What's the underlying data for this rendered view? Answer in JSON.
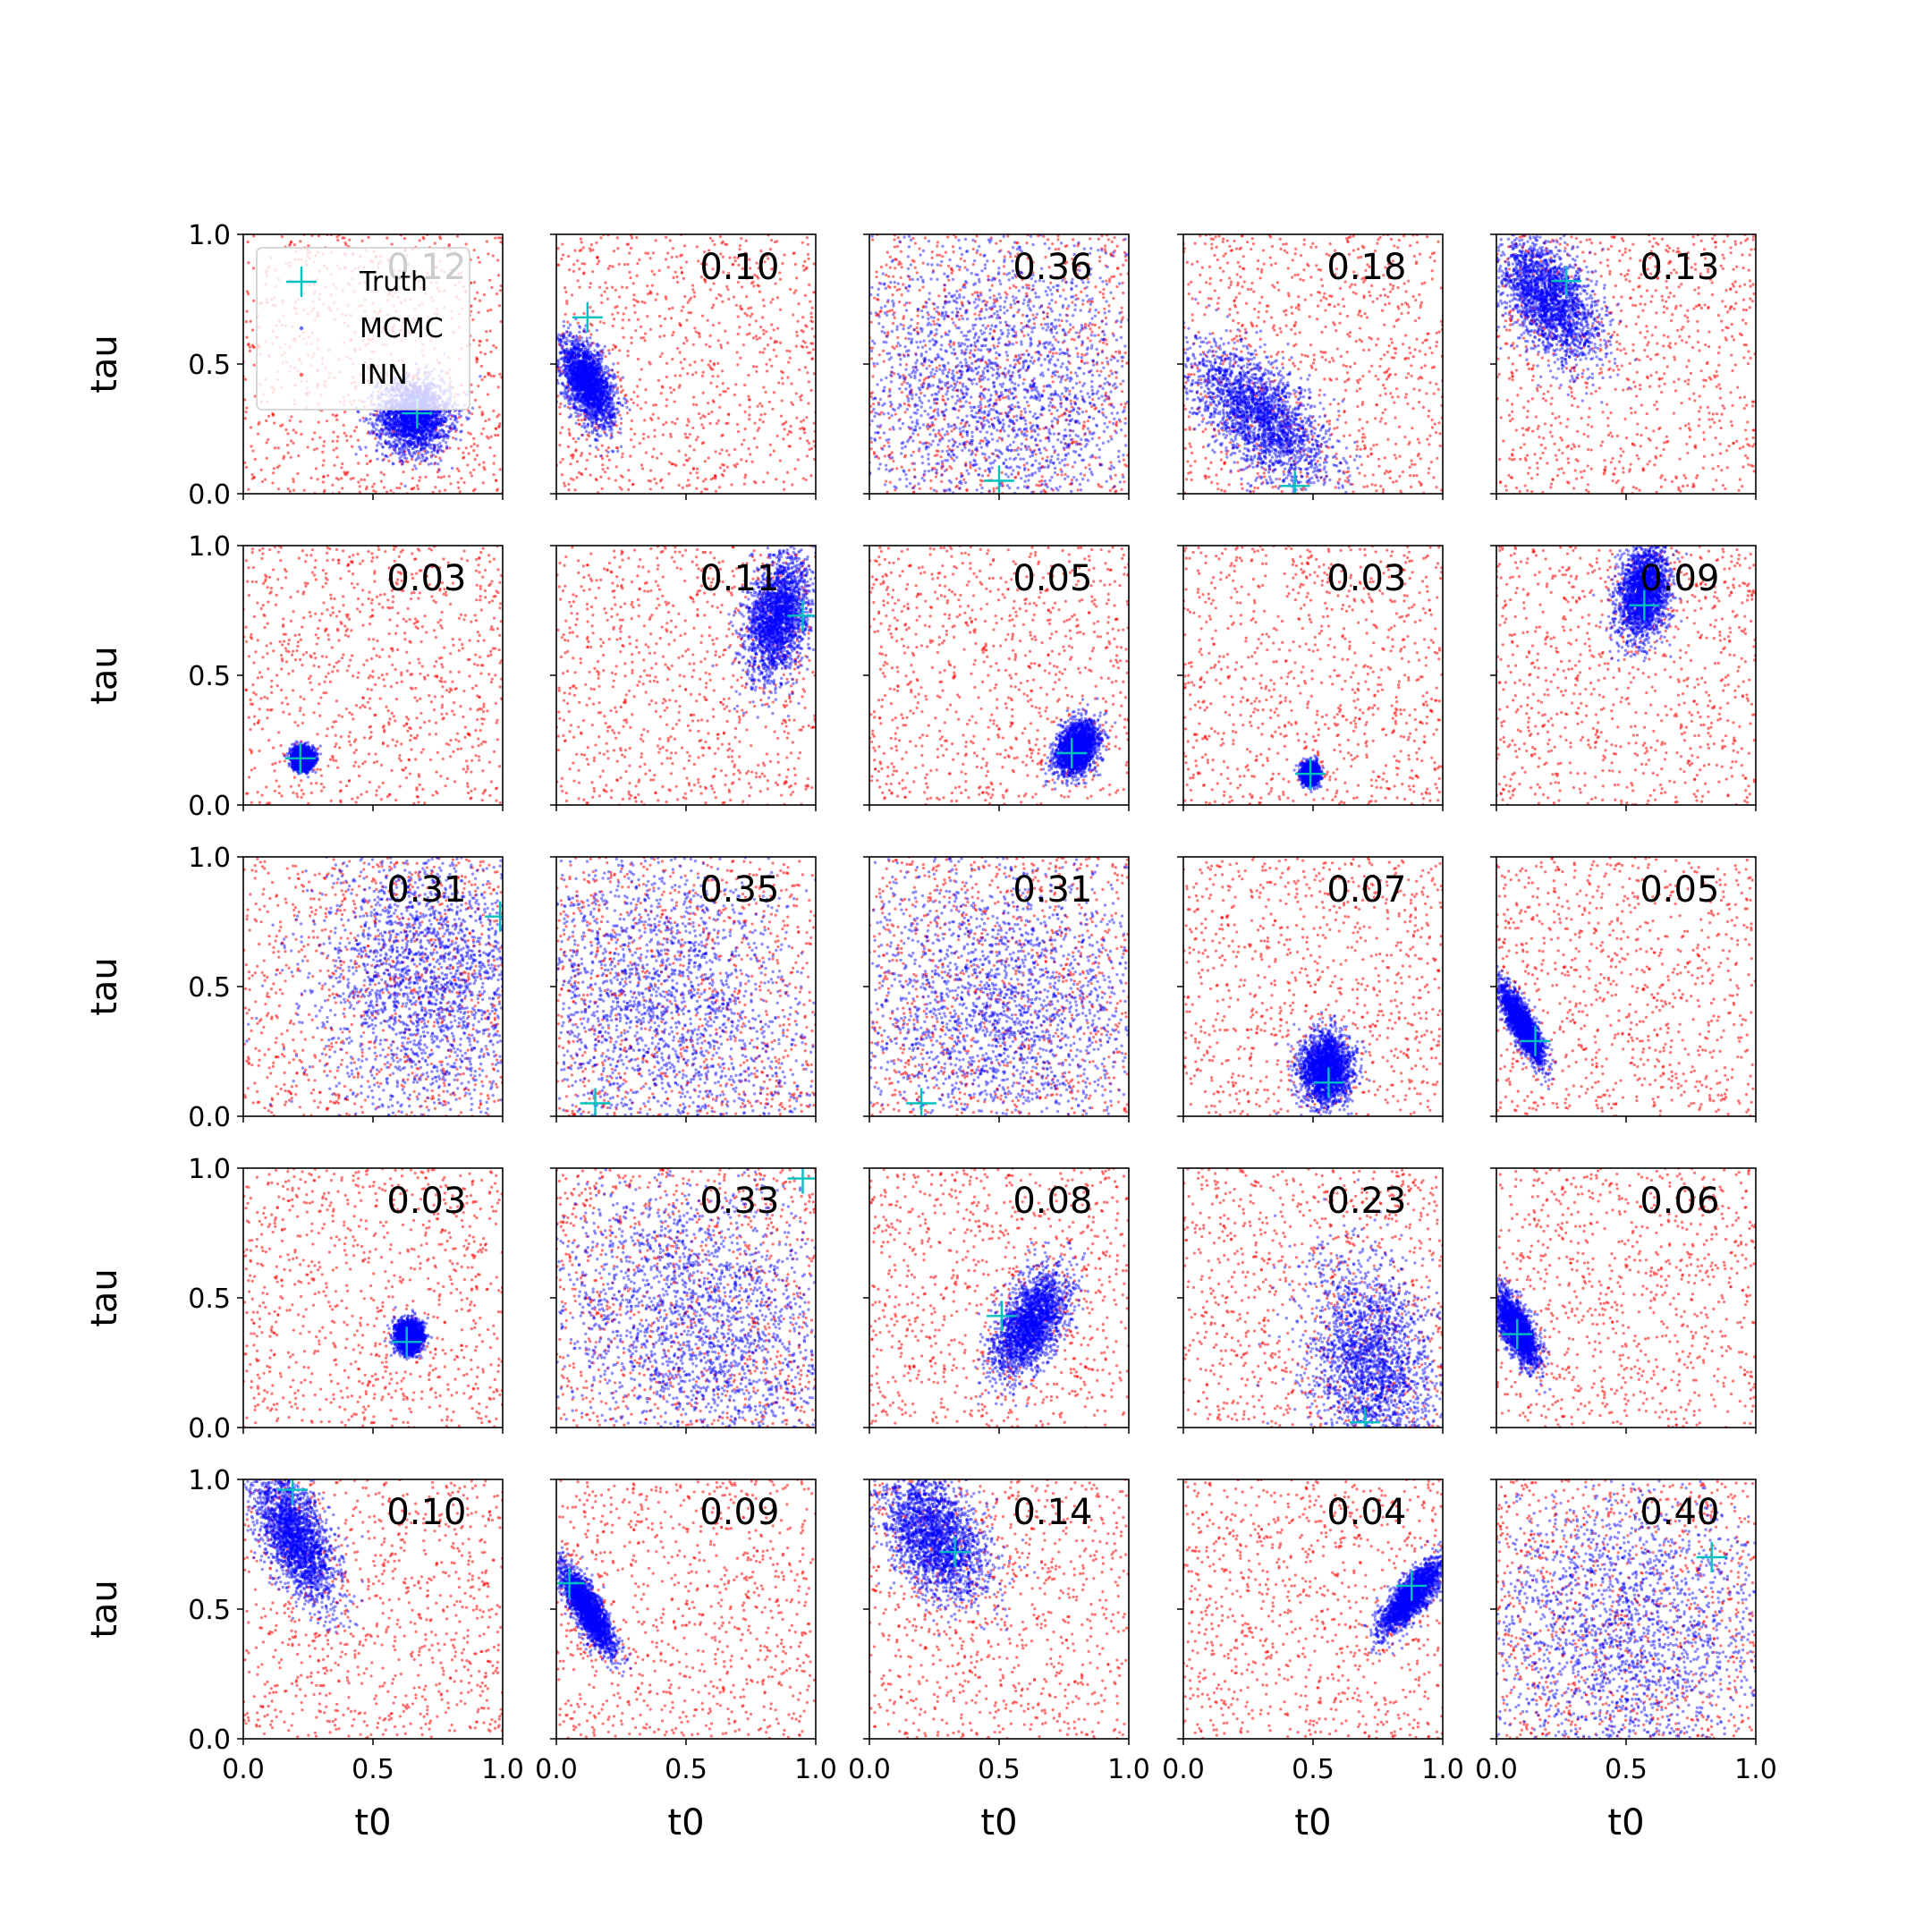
{
  "chart_data": {
    "type": "scatter",
    "grid_rows": 5,
    "grid_cols": 5,
    "xlabel": "t0",
    "ylabel": "tau",
    "xlim": [
      0,
      1
    ],
    "ylim": [
      0,
      1
    ],
    "x_ticks": [
      "0.0",
      "0.5",
      "1.0"
    ],
    "y_ticks": [
      "0.0",
      "0.5",
      "1.0"
    ],
    "grid": false,
    "legend": {
      "placement": "top-left",
      "entries": [
        {
          "label": "Truth",
          "marker": "plus",
          "color": "#00bfbf"
        },
        {
          "label": "MCMC",
          "marker": "dot",
          "color": "#0000ff"
        },
        {
          "label": "INN",
          "marker": "dot",
          "color": "#ff0000"
        }
      ]
    },
    "colors": {
      "truth": "#00bfbf",
      "mcmc": "#0000ff",
      "inn": "#ff0000"
    },
    "panels": [
      {
        "score": "0.12",
        "truth": [
          0.67,
          0.31
        ],
        "mcmc": {
          "mean": [
            0.66,
            0.3
          ],
          "sd": [
            0.07,
            0.07
          ],
          "corr": 0.0
        }
      },
      {
        "score": "0.10",
        "truth": [
          0.12,
          0.68
        ],
        "mcmc": {
          "mean": [
            0.12,
            0.43
          ],
          "sd": [
            0.05,
            0.08
          ],
          "corr": -0.5
        }
      },
      {
        "score": "0.36",
        "truth": [
          0.5,
          0.05
        ],
        "mcmc": {
          "mean": [
            0.5,
            0.4
          ],
          "sd": [
            0.3,
            0.3
          ],
          "corr": 0.0
        }
      },
      {
        "score": "0.18",
        "truth": [
          0.43,
          0.03
        ],
        "mcmc": {
          "mean": [
            0.3,
            0.3
          ],
          "sd": [
            0.13,
            0.13
          ],
          "corr": -0.6
        }
      },
      {
        "score": "0.13",
        "truth": [
          0.27,
          0.82
        ],
        "mcmc": {
          "mean": [
            0.2,
            0.75
          ],
          "sd": [
            0.1,
            0.12
          ],
          "corr": -0.5
        }
      },
      {
        "score": "0.03",
        "truth": [
          0.22,
          0.18
        ],
        "mcmc": {
          "mean": [
            0.23,
            0.18
          ],
          "sd": [
            0.02,
            0.02
          ],
          "corr": 0.0
        }
      },
      {
        "score": "0.11",
        "truth": [
          0.95,
          0.73
        ],
        "mcmc": {
          "mean": [
            0.85,
            0.72
          ],
          "sd": [
            0.06,
            0.12
          ],
          "corr": 0.3
        }
      },
      {
        "score": "0.05",
        "truth": [
          0.78,
          0.2
        ],
        "mcmc": {
          "mean": [
            0.8,
            0.22
          ],
          "sd": [
            0.04,
            0.05
          ],
          "corr": 0.3
        }
      },
      {
        "score": "0.03",
        "truth": [
          0.49,
          0.12
        ],
        "mcmc": {
          "mean": [
            0.49,
            0.12
          ],
          "sd": [
            0.015,
            0.02
          ],
          "corr": 0.0
        }
      },
      {
        "score": "0.09",
        "truth": [
          0.57,
          0.77
        ],
        "mcmc": {
          "mean": [
            0.57,
            0.82
          ],
          "sd": [
            0.05,
            0.09
          ],
          "corr": 0.2
        }
      },
      {
        "score": "0.31",
        "truth": [
          0.99,
          0.77
        ],
        "mcmc": {
          "mean": [
            0.72,
            0.55
          ],
          "sd": [
            0.22,
            0.28
          ],
          "corr": 0.0
        }
      },
      {
        "score": "0.35",
        "truth": [
          0.15,
          0.05
        ],
        "mcmc": {
          "mean": [
            0.4,
            0.45
          ],
          "sd": [
            0.3,
            0.3
          ],
          "corr": -0.2
        }
      },
      {
        "score": "0.31",
        "truth": [
          0.2,
          0.05
        ],
        "mcmc": {
          "mean": [
            0.5,
            0.4
          ],
          "sd": [
            0.3,
            0.28
          ],
          "corr": 0.0
        }
      },
      {
        "score": "0.07",
        "truth": [
          0.56,
          0.13
        ],
        "mcmc": {
          "mean": [
            0.55,
            0.18
          ],
          "sd": [
            0.05,
            0.07
          ],
          "corr": 0.0
        }
      },
      {
        "score": "0.05",
        "truth": [
          0.15,
          0.29
        ],
        "mcmc": {
          "mean": [
            0.1,
            0.35
          ],
          "sd": [
            0.04,
            0.07
          ],
          "corr": -0.8
        }
      },
      {
        "score": "0.03",
        "truth": [
          0.63,
          0.33
        ],
        "mcmc": {
          "mean": [
            0.64,
            0.35
          ],
          "sd": [
            0.025,
            0.03
          ],
          "corr": 0.0
        }
      },
      {
        "score": "0.33",
        "truth": [
          0.95,
          0.96
        ],
        "mcmc": {
          "mean": [
            0.55,
            0.4
          ],
          "sd": [
            0.28,
            0.28
          ],
          "corr": -0.2
        }
      },
      {
        "score": "0.08",
        "truth": [
          0.51,
          0.43
        ],
        "mcmc": {
          "mean": [
            0.62,
            0.4
          ],
          "sd": [
            0.07,
            0.1
          ],
          "corr": 0.5
        }
      },
      {
        "score": "0.23",
        "truth": [
          0.7,
          0.02
        ],
        "mcmc": {
          "mean": [
            0.72,
            0.25
          ],
          "sd": [
            0.12,
            0.2
          ],
          "corr": -0.2
        }
      },
      {
        "score": "0.06",
        "truth": [
          0.08,
          0.36
        ],
        "mcmc": {
          "mean": [
            0.08,
            0.38
          ],
          "sd": [
            0.04,
            0.07
          ],
          "corr": -0.7
        }
      },
      {
        "score": "0.10",
        "truth": [
          0.19,
          0.96
        ],
        "mcmc": {
          "mean": [
            0.2,
            0.78
          ],
          "sd": [
            0.08,
            0.13
          ],
          "corr": -0.6
        }
      },
      {
        "score": "0.09",
        "truth": [
          0.05,
          0.6
        ],
        "mcmc": {
          "mean": [
            0.12,
            0.5
          ],
          "sd": [
            0.05,
            0.08
          ],
          "corr": -0.8
        }
      },
      {
        "score": "0.14",
        "truth": [
          0.33,
          0.72
        ],
        "mcmc": {
          "mean": [
            0.25,
            0.78
          ],
          "sd": [
            0.1,
            0.12
          ],
          "corr": -0.4
        }
      },
      {
        "score": "0.04",
        "truth": [
          0.88,
          0.59
        ],
        "mcmc": {
          "mean": [
            0.88,
            0.55
          ],
          "sd": [
            0.06,
            0.07
          ],
          "corr": 0.8
        }
      },
      {
        "score": "0.40",
        "truth": [
          0.83,
          0.7
        ],
        "mcmc": {
          "mean": [
            0.5,
            0.4
          ],
          "sd": [
            0.3,
            0.3
          ],
          "corr": 0.0
        }
      }
    ]
  }
}
